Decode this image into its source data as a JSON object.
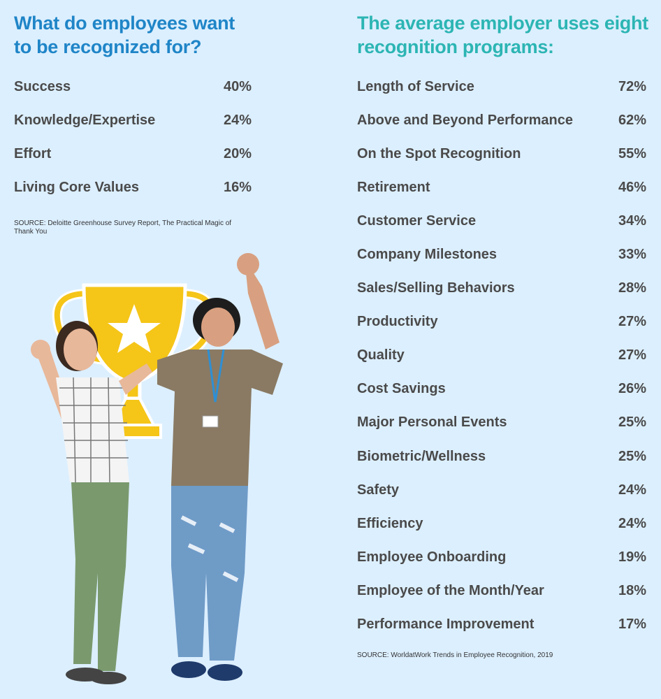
{
  "left": {
    "title": "What do employees want to be recognized for?",
    "source": "SOURCE: Deloitte Greenhouse Survey Report, The Practical Magic of Thank You"
  },
  "right": {
    "title": "The average employer uses eight recognition programs:",
    "source": "SOURCE: WorldatWork Trends in Employee Recognition, 2019"
  },
  "colors": {
    "background": "#dcefff",
    "left_title": "#1f85c7",
    "right_title": "#2cb5b3",
    "text": "#4a4a4a",
    "trophy": "#f5c518"
  },
  "chart_data": [
    {
      "type": "table",
      "title": "What do employees want to be recognized for?",
      "categories": [
        "Success",
        "Knowledge/Expertise",
        "Effort",
        "Living Core Values"
      ],
      "values": [
        "40%",
        "24%",
        "20%",
        "16%"
      ]
    },
    {
      "type": "table",
      "title": "The average employer uses eight recognition programs:",
      "categories": [
        "Length of Service",
        "Above and Beyond Performance",
        "On the Spot Recognition",
        "Retirement",
        "Customer Service",
        "Company Milestones",
        "Sales/Selling Behaviors",
        "Productivity",
        "Quality",
        "Cost Savings",
        "Major Personal Events",
        "Biometric/Wellness",
        "Safety",
        "Efficiency",
        "Employee Onboarding",
        "Employee of the Month/Year",
        "Performance Improvement"
      ],
      "values": [
        "72%",
        "62%",
        "55%",
        "46%",
        "34%",
        "33%",
        "28%",
        "27%",
        "27%",
        "26%",
        "25%",
        "25%",
        "24%",
        "24%",
        "19%",
        "18%",
        "17%"
      ]
    }
  ]
}
